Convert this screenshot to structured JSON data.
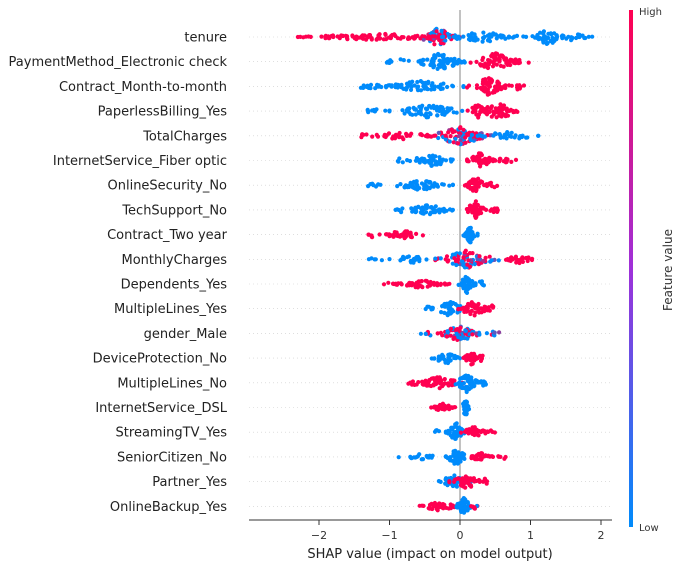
{
  "chart_data": {
    "type": "scatter",
    "subtype": "beeswarm",
    "xlabel": "SHAP value (impact on model output)",
    "xlim": [
      -2.95,
      2.05
    ],
    "xticks": [
      -2,
      -1,
      0,
      1,
      2
    ],
    "xtick_labels": [
      "−2",
      "−1",
      "0",
      "1",
      "2"
    ],
    "colorbar": {
      "label": "Feature value",
      "high": "High",
      "low": "Low"
    },
    "colors": {
      "high": "#ff0051",
      "low": "#008bfb",
      "axis": "#333333",
      "zero_line": "#999999",
      "grid": "#cccccc"
    },
    "features": [
      {
        "name": "tenure",
        "clusters": [
          {
            "c": -0.3,
            "w": 0.3,
            "n": 60,
            "col": "mix",
            "h": 0.95
          },
          {
            "c": -1.2,
            "w": 1.1,
            "n": 90,
            "col": "high",
            "h": 0.35
          },
          {
            "c": 0.35,
            "w": 0.65,
            "n": 60,
            "col": "low",
            "h": 0.5
          },
          {
            "c": 1.25,
            "w": 0.25,
            "n": 35,
            "col": "low",
            "h": 0.8
          },
          {
            "c": 1.6,
            "w": 0.3,
            "n": 20,
            "col": "low",
            "h": 0.35
          }
        ]
      },
      {
        "name": "PaymentMethod_Electronic check",
        "clusters": [
          {
            "c": -0.3,
            "w": 0.4,
            "n": 70,
            "col": "low",
            "h": 0.85
          },
          {
            "c": -0.85,
            "w": 0.3,
            "n": 10,
            "col": "low",
            "h": 0.3
          },
          {
            "c": 0.5,
            "w": 0.35,
            "n": 60,
            "col": "high",
            "h": 0.9
          },
          {
            "c": 0.85,
            "w": 0.2,
            "n": 12,
            "col": "high",
            "h": 0.35
          }
        ]
      },
      {
        "name": "Contract_Month-to-month",
        "clusters": [
          {
            "c": -0.55,
            "w": 0.6,
            "n": 65,
            "col": "low",
            "h": 0.6
          },
          {
            "c": -1.3,
            "w": 0.25,
            "n": 15,
            "col": "low",
            "h": 0.3
          },
          {
            "c": 0.4,
            "w": 0.3,
            "n": 60,
            "col": "high",
            "h": 0.9
          },
          {
            "c": 0.8,
            "w": 0.15,
            "n": 10,
            "col": "high",
            "h": 0.35
          }
        ]
      },
      {
        "name": "PaperlessBilling_Yes",
        "clusters": [
          {
            "c": -0.45,
            "w": 0.55,
            "n": 65,
            "col": "low",
            "h": 0.65
          },
          {
            "c": -1.2,
            "w": 0.2,
            "n": 10,
            "col": "low",
            "h": 0.3
          },
          {
            "c": 0.25,
            "w": 0.15,
            "n": 25,
            "col": "high",
            "h": 0.7
          },
          {
            "c": 0.55,
            "w": 0.3,
            "n": 45,
            "col": "high",
            "h": 0.85
          }
        ]
      },
      {
        "name": "TotalCharges",
        "clusters": [
          {
            "c": 0.0,
            "w": 0.45,
            "n": 80,
            "col": "mix",
            "h": 0.9
          },
          {
            "c": -0.85,
            "w": 0.5,
            "n": 35,
            "col": "high",
            "h": 0.4
          },
          {
            "c": 0.7,
            "w": 0.45,
            "n": 35,
            "col": "low",
            "h": 0.45
          },
          {
            "c": -1.4,
            "w": 0.15,
            "n": 6,
            "col": "high",
            "h": 0.3
          }
        ]
      },
      {
        "name": "InternetService_Fiber optic",
        "clusters": [
          {
            "c": -0.4,
            "w": 0.35,
            "n": 50,
            "col": "low",
            "h": 0.6
          },
          {
            "c": -0.85,
            "w": 0.1,
            "n": 4,
            "col": "low",
            "h": 0.3
          },
          {
            "c": 0.3,
            "w": 0.2,
            "n": 45,
            "col": "high",
            "h": 0.85
          },
          {
            "c": 0.65,
            "w": 0.2,
            "n": 12,
            "col": "high",
            "h": 0.35
          }
        ]
      },
      {
        "name": "OnlineSecurity_No",
        "clusters": [
          {
            "c": -0.55,
            "w": 0.45,
            "n": 55,
            "col": "low",
            "h": 0.5
          },
          {
            "c": -1.2,
            "w": 0.15,
            "n": 8,
            "col": "low",
            "h": 0.3
          },
          {
            "c": 0.22,
            "w": 0.15,
            "n": 45,
            "col": "high",
            "h": 0.9
          },
          {
            "c": 0.45,
            "w": 0.1,
            "n": 8,
            "col": "high",
            "h": 0.35
          }
        ]
      },
      {
        "name": "TechSupport_No",
        "clusters": [
          {
            "c": -0.45,
            "w": 0.35,
            "n": 50,
            "col": "low",
            "h": 0.55
          },
          {
            "c": -0.85,
            "w": 0.1,
            "n": 5,
            "col": "low",
            "h": 0.3
          },
          {
            "c": 0.22,
            "w": 0.15,
            "n": 45,
            "col": "high",
            "h": 0.9
          },
          {
            "c": 0.5,
            "w": 0.1,
            "n": 8,
            "col": "high",
            "h": 0.35
          }
        ]
      },
      {
        "name": "Contract_Two year",
        "clusters": [
          {
            "c": -0.8,
            "w": 0.35,
            "n": 45,
            "col": "high",
            "h": 0.4
          },
          {
            "c": -1.25,
            "w": 0.1,
            "n": 5,
            "col": "high",
            "h": 0.3
          },
          {
            "c": 0.15,
            "w": 0.1,
            "n": 40,
            "col": "low",
            "h": 0.85
          }
        ]
      },
      {
        "name": "MonthlyCharges",
        "clusters": [
          {
            "c": 0.1,
            "w": 0.45,
            "n": 80,
            "col": "mix",
            "h": 0.9
          },
          {
            "c": -0.7,
            "w": 0.3,
            "n": 25,
            "col": "low",
            "h": 0.4
          },
          {
            "c": 0.85,
            "w": 0.3,
            "n": 25,
            "col": "high",
            "h": 0.4
          },
          {
            "c": -1.2,
            "w": 0.15,
            "n": 5,
            "col": "low",
            "h": 0.3
          }
        ]
      },
      {
        "name": "Dependents_Yes",
        "clusters": [
          {
            "c": -0.55,
            "w": 0.4,
            "n": 55,
            "col": "high",
            "h": 0.4
          },
          {
            "c": -0.95,
            "w": 0.15,
            "n": 6,
            "col": "high",
            "h": 0.3
          },
          {
            "c": 0.1,
            "w": 0.12,
            "n": 45,
            "col": "low",
            "h": 0.9
          },
          {
            "c": 0.3,
            "w": 0.1,
            "n": 6,
            "col": "low",
            "h": 0.35
          }
        ]
      },
      {
        "name": "MultipleLines_Yes",
        "clusters": [
          {
            "c": -0.15,
            "w": 0.25,
            "n": 45,
            "col": "low",
            "h": 0.75
          },
          {
            "c": -0.45,
            "w": 0.1,
            "n": 5,
            "col": "low",
            "h": 0.3
          },
          {
            "c": 0.2,
            "w": 0.25,
            "n": 45,
            "col": "high",
            "h": 0.75
          },
          {
            "c": 0.45,
            "w": 0.1,
            "n": 6,
            "col": "high",
            "h": 0.35
          }
        ]
      },
      {
        "name": "gender_Male",
        "clusters": [
          {
            "c": 0.0,
            "w": 0.35,
            "n": 80,
            "col": "mix",
            "h": 0.75
          },
          {
            "c": -0.45,
            "w": 0.12,
            "n": 8,
            "col": "mix",
            "h": 0.3
          },
          {
            "c": 0.5,
            "w": 0.12,
            "n": 8,
            "col": "mix",
            "h": 0.3
          }
        ]
      },
      {
        "name": "DeviceProtection_No",
        "clusters": [
          {
            "c": -0.2,
            "w": 0.2,
            "n": 40,
            "col": "low",
            "h": 0.6
          },
          {
            "c": 0.15,
            "w": 0.1,
            "n": 35,
            "col": "high",
            "h": 0.85
          },
          {
            "c": 0.3,
            "w": 0.07,
            "n": 6,
            "col": "high",
            "h": 0.35
          }
        ]
      },
      {
        "name": "MultipleLines_No",
        "clusters": [
          {
            "c": -0.3,
            "w": 0.35,
            "n": 55,
            "col": "high",
            "h": 0.6
          },
          {
            "c": -0.65,
            "w": 0.12,
            "n": 6,
            "col": "high",
            "h": 0.3
          },
          {
            "c": 0.1,
            "w": 0.2,
            "n": 50,
            "col": "low",
            "h": 0.95
          },
          {
            "c": 0.35,
            "w": 0.1,
            "n": 8,
            "col": "low",
            "h": 0.4
          }
        ]
      },
      {
        "name": "InternetService_DSL",
        "clusters": [
          {
            "c": -0.25,
            "w": 0.18,
            "n": 40,
            "col": "high",
            "h": 0.4
          },
          {
            "c": 0.08,
            "w": 0.06,
            "n": 40,
            "col": "low",
            "h": 0.9
          }
        ]
      },
      {
        "name": "StreamingTV_Yes",
        "clusters": [
          {
            "c": -0.05,
            "w": 0.15,
            "n": 45,
            "col": "low",
            "h": 0.9
          },
          {
            "c": 0.2,
            "w": 0.2,
            "n": 35,
            "col": "high",
            "h": 0.6
          },
          {
            "c": 0.4,
            "w": 0.1,
            "n": 6,
            "col": "high",
            "h": 0.3
          },
          {
            "c": -0.35,
            "w": 0.08,
            "n": 4,
            "col": "low",
            "h": 0.3
          }
        ]
      },
      {
        "name": "SeniorCitizen_No",
        "clusters": [
          {
            "c": -0.05,
            "w": 0.15,
            "n": 45,
            "col": "low",
            "h": 0.9
          },
          {
            "c": -0.55,
            "w": 0.35,
            "n": 20,
            "col": "low",
            "h": 0.3
          },
          {
            "c": 0.3,
            "w": 0.2,
            "n": 30,
            "col": "high",
            "h": 0.4
          },
          {
            "c": 0.6,
            "w": 0.12,
            "n": 5,
            "col": "high",
            "h": 0.3
          }
        ]
      },
      {
        "name": "Partner_Yes",
        "clusters": [
          {
            "c": -0.1,
            "w": 0.25,
            "n": 45,
            "col": "low",
            "h": 0.7
          },
          {
            "c": 0.1,
            "w": 0.25,
            "n": 45,
            "col": "high",
            "h": 0.7
          },
          {
            "c": 0.35,
            "w": 0.1,
            "n": 6,
            "col": "high",
            "h": 0.3
          }
        ]
      },
      {
        "name": "OnlineBackup_Yes",
        "clusters": [
          {
            "c": -0.3,
            "w": 0.3,
            "n": 40,
            "col": "high",
            "h": 0.45
          },
          {
            "c": 0.05,
            "w": 0.12,
            "n": 45,
            "col": "low",
            "h": 0.85
          },
          {
            "c": 0.2,
            "w": 0.06,
            "n": 8,
            "col": "mix",
            "h": 0.35
          }
        ]
      }
    ]
  }
}
